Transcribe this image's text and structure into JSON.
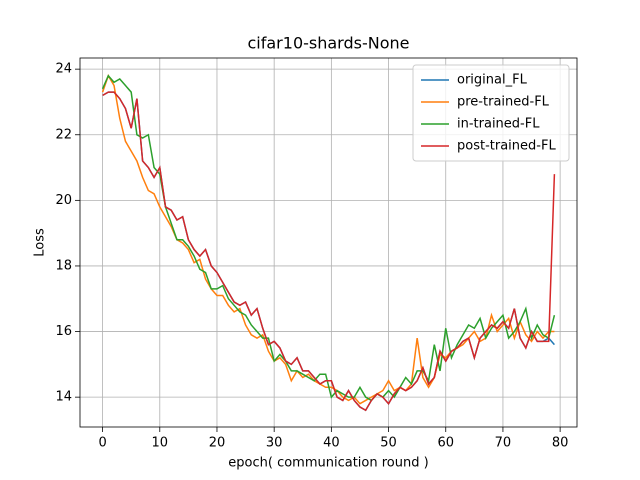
{
  "chart_data": {
    "type": "line",
    "title": "cifar10-shards-None",
    "xlabel": "epoch( communication round )",
    "ylabel": "Loss",
    "x": [
      0,
      1,
      2,
      3,
      4,
      5,
      6,
      7,
      8,
      9,
      10,
      11,
      12,
      13,
      14,
      15,
      16,
      17,
      18,
      19,
      20,
      21,
      22,
      23,
      24,
      25,
      26,
      27,
      28,
      29,
      30,
      31,
      32,
      33,
      34,
      35,
      36,
      37,
      38,
      39,
      40,
      41,
      42,
      43,
      44,
      45,
      46,
      47,
      48,
      49,
      50,
      51,
      52,
      53,
      54,
      55,
      56,
      57,
      58,
      59,
      60,
      61,
      62,
      63,
      64,
      65,
      66,
      67,
      68,
      69,
      70,
      71,
      72,
      73,
      74,
      75,
      76,
      77,
      78,
      79
    ],
    "xlim": [
      -3.95,
      82.95
    ],
    "xticks": [
      0,
      10,
      20,
      30,
      40,
      50,
      60,
      70,
      80
    ],
    "ylim": [
      13.09,
      24.34
    ],
    "yticks": [
      14,
      16,
      18,
      20,
      22,
      24
    ],
    "grid": true,
    "legend": "upper right",
    "series": [
      {
        "name": "original_FL",
        "color": "#1f77b4",
        "values": [
          23.2,
          23.3,
          23.3,
          23.1,
          22.8,
          22.2,
          23.1,
          21.2,
          21.0,
          20.7,
          21.0,
          19.8,
          19.7,
          19.4,
          19.5,
          18.8,
          18.5,
          18.3,
          18.5,
          18.0,
          17.8,
          17.5,
          17.2,
          16.9,
          16.8,
          16.9,
          16.5,
          16.7,
          16.1,
          15.6,
          15.7,
          15.5,
          15.1,
          15.0,
          15.2,
          14.8,
          14.8,
          14.6,
          14.4,
          14.5,
          14.5,
          14.0,
          13.9,
          14.2,
          13.9,
          13.7,
          13.6,
          13.9,
          14.1,
          14.0,
          13.8,
          14.1,
          14.3,
          14.2,
          14.3,
          14.5,
          14.9,
          14.4,
          14.6,
          15.4,
          15.1,
          15.4,
          15.5,
          15.7,
          15.8,
          15.2,
          15.8,
          16.0,
          16.2,
          16.1,
          16.3,
          16.1,
          16.7,
          15.8,
          15.5,
          16.0,
          15.7,
          15.7,
          15.8,
          15.6
        ]
      },
      {
        "name": "pre-trained-FL",
        "color": "#ff7f0e",
        "values": [
          23.3,
          23.8,
          23.5,
          22.5,
          21.8,
          21.5,
          21.2,
          20.7,
          20.3,
          20.2,
          19.8,
          19.5,
          19.2,
          18.8,
          18.7,
          18.5,
          18.1,
          18.2,
          17.6,
          17.3,
          17.1,
          17.1,
          16.8,
          16.6,
          16.7,
          16.2,
          15.9,
          15.8,
          15.9,
          15.4,
          15.1,
          15.2,
          15.0,
          14.5,
          14.8,
          14.6,
          14.7,
          14.5,
          14.4,
          14.3,
          14.3,
          14.2,
          14.0,
          13.9,
          14.0,
          13.8,
          13.9,
          14.0,
          14.1,
          14.2,
          14.5,
          14.2,
          14.3,
          14.2,
          14.4,
          15.8,
          14.6,
          14.3,
          14.6,
          15.3,
          15.2,
          15.4,
          15.5,
          15.6,
          15.8,
          16.0,
          15.7,
          15.8,
          16.5,
          16.0,
          16.2,
          16.4,
          15.8,
          16.3,
          15.9,
          15.7,
          16.0,
          15.8,
          16.0,
          16.0
        ]
      },
      {
        "name": "in-trained-FL",
        "color": "#2ca02c",
        "values": [
          23.4,
          23.8,
          23.6,
          23.7,
          23.5,
          23.3,
          22.0,
          21.9,
          22.0,
          21.0,
          20.8,
          19.8,
          19.3,
          18.8,
          18.8,
          18.6,
          18.3,
          17.9,
          17.8,
          17.3,
          17.3,
          17.4,
          17.0,
          16.8,
          16.6,
          16.5,
          16.2,
          16.0,
          15.8,
          15.8,
          15.1,
          15.3,
          15.1,
          14.8,
          14.8,
          14.7,
          14.6,
          14.5,
          14.7,
          14.7,
          14.0,
          14.2,
          14.1,
          14.0,
          14.0,
          14.3,
          14.0,
          13.9,
          14.1,
          14.0,
          14.2,
          14.0,
          14.3,
          14.6,
          14.4,
          14.8,
          14.8,
          14.5,
          15.6,
          14.8,
          16.1,
          15.2,
          15.6,
          15.9,
          16.2,
          16.1,
          16.4,
          15.8,
          16.1,
          16.3,
          16.5,
          15.8,
          16.0,
          16.3,
          16.7,
          15.8,
          16.2,
          15.9,
          15.8,
          16.5
        ]
      },
      {
        "name": "post-trained-FL",
        "color": "#d62728",
        "values": [
          23.2,
          23.3,
          23.3,
          23.1,
          22.8,
          22.2,
          23.1,
          21.2,
          21.0,
          20.7,
          21.0,
          19.8,
          19.7,
          19.4,
          19.5,
          18.8,
          18.5,
          18.3,
          18.5,
          18.0,
          17.8,
          17.5,
          17.2,
          16.9,
          16.8,
          16.9,
          16.5,
          16.7,
          16.1,
          15.6,
          15.7,
          15.5,
          15.1,
          15.0,
          15.2,
          14.8,
          14.8,
          14.6,
          14.4,
          14.5,
          14.5,
          14.0,
          13.9,
          14.2,
          13.9,
          13.7,
          13.6,
          13.9,
          14.1,
          14.0,
          13.8,
          14.1,
          14.3,
          14.2,
          14.3,
          14.5,
          14.9,
          14.4,
          14.6,
          15.4,
          15.1,
          15.4,
          15.5,
          15.7,
          15.8,
          15.2,
          15.8,
          16.0,
          16.2,
          16.1,
          16.3,
          16.1,
          16.7,
          15.8,
          15.5,
          16.0,
          15.7,
          15.7,
          15.7,
          20.8
        ]
      }
    ]
  }
}
